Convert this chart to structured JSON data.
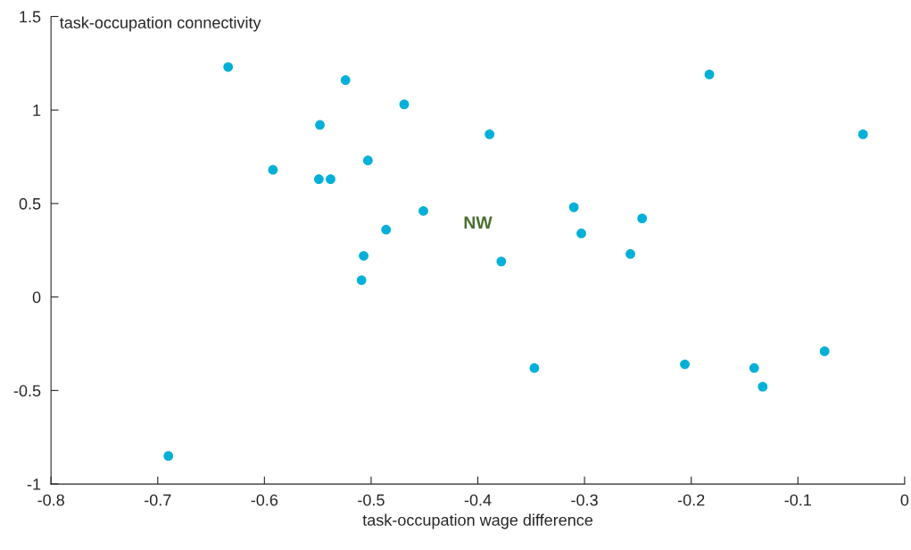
{
  "chart_data": {
    "type": "scatter",
    "xlabel": "task-occupation wage difference",
    "ylabel": "task-occupation connectivity",
    "xlim": [
      -0.8,
      0
    ],
    "xticks": [
      -0.8,
      -0.7,
      -0.6,
      -0.5,
      -0.4,
      -0.3,
      -0.2,
      -0.1,
      0
    ],
    "ylim": [
      -1,
      1.5
    ],
    "yticks": [
      -1,
      -0.5,
      0,
      0.5,
      1,
      1.5
    ],
    "grid": false,
    "marker": "circle",
    "series": [
      {
        "color": "#00b0d8",
        "x": [
          -0.634,
          -0.524,
          -0.183,
          -0.469,
          -0.548,
          -0.389,
          -0.039,
          -0.592,
          -0.503,
          -0.549,
          -0.538,
          -0.451,
          -0.486,
          -0.31,
          -0.246,
          -0.303,
          -0.257,
          -0.507,
          -0.378,
          -0.509,
          -0.347,
          -0.206,
          -0.141,
          -0.133,
          -0.075,
          -0.69
        ],
        "values": [
          1.23,
          1.16,
          1.19,
          1.03,
          0.92,
          0.87,
          0.87,
          0.68,
          0.73,
          0.63,
          0.63,
          0.46,
          0.36,
          0.48,
          0.42,
          0.34,
          0.23,
          0.22,
          0.19,
          0.09,
          -0.38,
          -0.36,
          -0.38,
          -0.48,
          -0.29,
          -0.85
        ]
      }
    ],
    "annotations": [
      "NW"
    ]
  }
}
